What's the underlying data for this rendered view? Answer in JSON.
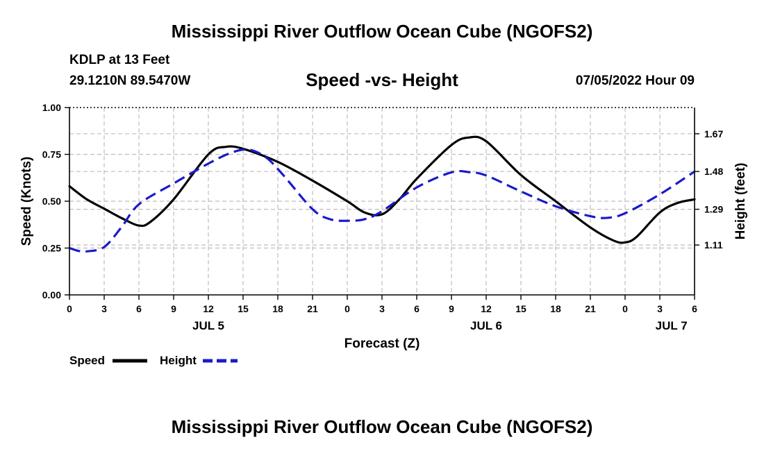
{
  "header": {
    "title": "Mississippi River Outflow Ocean Cube (NGOFS2)",
    "station": "KDLP at 13 Feet",
    "coords": "29.1210N  89.5470W",
    "subtitle": "Speed -vs- Height",
    "datetime": "07/05/2022 Hour 09"
  },
  "footer": {
    "title": "Mississippi River Outflow Ocean Cube (NGOFS2)"
  },
  "chart_data": {
    "type": "line",
    "xlabel": "Forecast (Z)",
    "ylabel": "Speed (Knots)",
    "y2label": "Height (feet)",
    "xlim": [
      0,
      54
    ],
    "ylim": [
      0,
      1
    ],
    "y2lim": [
      0.859,
      1.802
    ],
    "x_ticks": [
      0,
      3,
      6,
      9,
      12,
      15,
      18,
      21,
      24,
      27,
      30,
      33,
      36,
      39,
      42,
      45,
      48,
      51,
      54
    ],
    "x_tick_labels": [
      "0",
      "3",
      "6",
      "9",
      "12",
      "15",
      "18",
      "21",
      "0",
      "3",
      "6",
      "9",
      "12",
      "15",
      "18",
      "21",
      "0",
      "3",
      "6"
    ],
    "date_labels": [
      {
        "x": 12,
        "label": "JUL 5"
      },
      {
        "x": 36,
        "label": "JUL 6"
      },
      {
        "x": 52,
        "label": "JUL 7"
      }
    ],
    "y_ticks": [
      0.0,
      0.25,
      0.5,
      0.75,
      1.0
    ],
    "y_tick_labels": [
      "0.00",
      "0.25",
      "0.50",
      "0.75",
      "1.00"
    ],
    "y2_ticks": [
      1.11,
      1.29,
      1.48,
      1.67
    ],
    "y2_tick_labels": [
      "1.11",
      "1.29",
      "1.48",
      "1.67"
    ],
    "grid": true,
    "legend": [
      {
        "name": "Speed",
        "color": "#000000",
        "style": "solid"
      },
      {
        "name": "Height",
        "color": "#1a1acc",
        "style": "dashed"
      }
    ],
    "series": [
      {
        "name": "Speed",
        "axis": "left",
        "color": "#000000",
        "style": "solid",
        "x": [
          0,
          1.5,
          3,
          4.5,
          6,
          7,
          9,
          12,
          13.5,
          15,
          18,
          21,
          24,
          25.5,
          27,
          28.5,
          30,
          33,
          34.5,
          36,
          39,
          42,
          45,
          47,
          48,
          49,
          51,
          52.5,
          54
        ],
        "values": [
          0.58,
          0.51,
          0.46,
          0.41,
          0.37,
          0.39,
          0.51,
          0.75,
          0.79,
          0.78,
          0.71,
          0.61,
          0.5,
          0.44,
          0.43,
          0.51,
          0.62,
          0.8,
          0.84,
          0.82,
          0.64,
          0.5,
          0.36,
          0.29,
          0.28,
          0.31,
          0.44,
          0.49,
          0.51
        ]
      },
      {
        "name": "Height",
        "axis": "right",
        "color": "#1a1acc",
        "style": "dashed",
        "x": [
          0,
          0.8,
          1.5,
          3,
          4.5,
          6,
          9,
          12,
          14,
          15.5,
          17,
          18.5,
          21,
          22.5,
          24,
          25.5,
          27,
          30,
          33,
          34.5,
          36,
          39,
          42,
          45,
          46.5,
          48,
          51,
          54
        ],
        "values": [
          1.095,
          1.08,
          1.078,
          1.1,
          1.2,
          1.315,
          1.42,
          1.52,
          1.575,
          1.59,
          1.55,
          1.46,
          1.29,
          1.24,
          1.232,
          1.24,
          1.28,
          1.4,
          1.476,
          1.477,
          1.46,
          1.38,
          1.305,
          1.255,
          1.247,
          1.27,
          1.365,
          1.48
        ]
      }
    ]
  }
}
